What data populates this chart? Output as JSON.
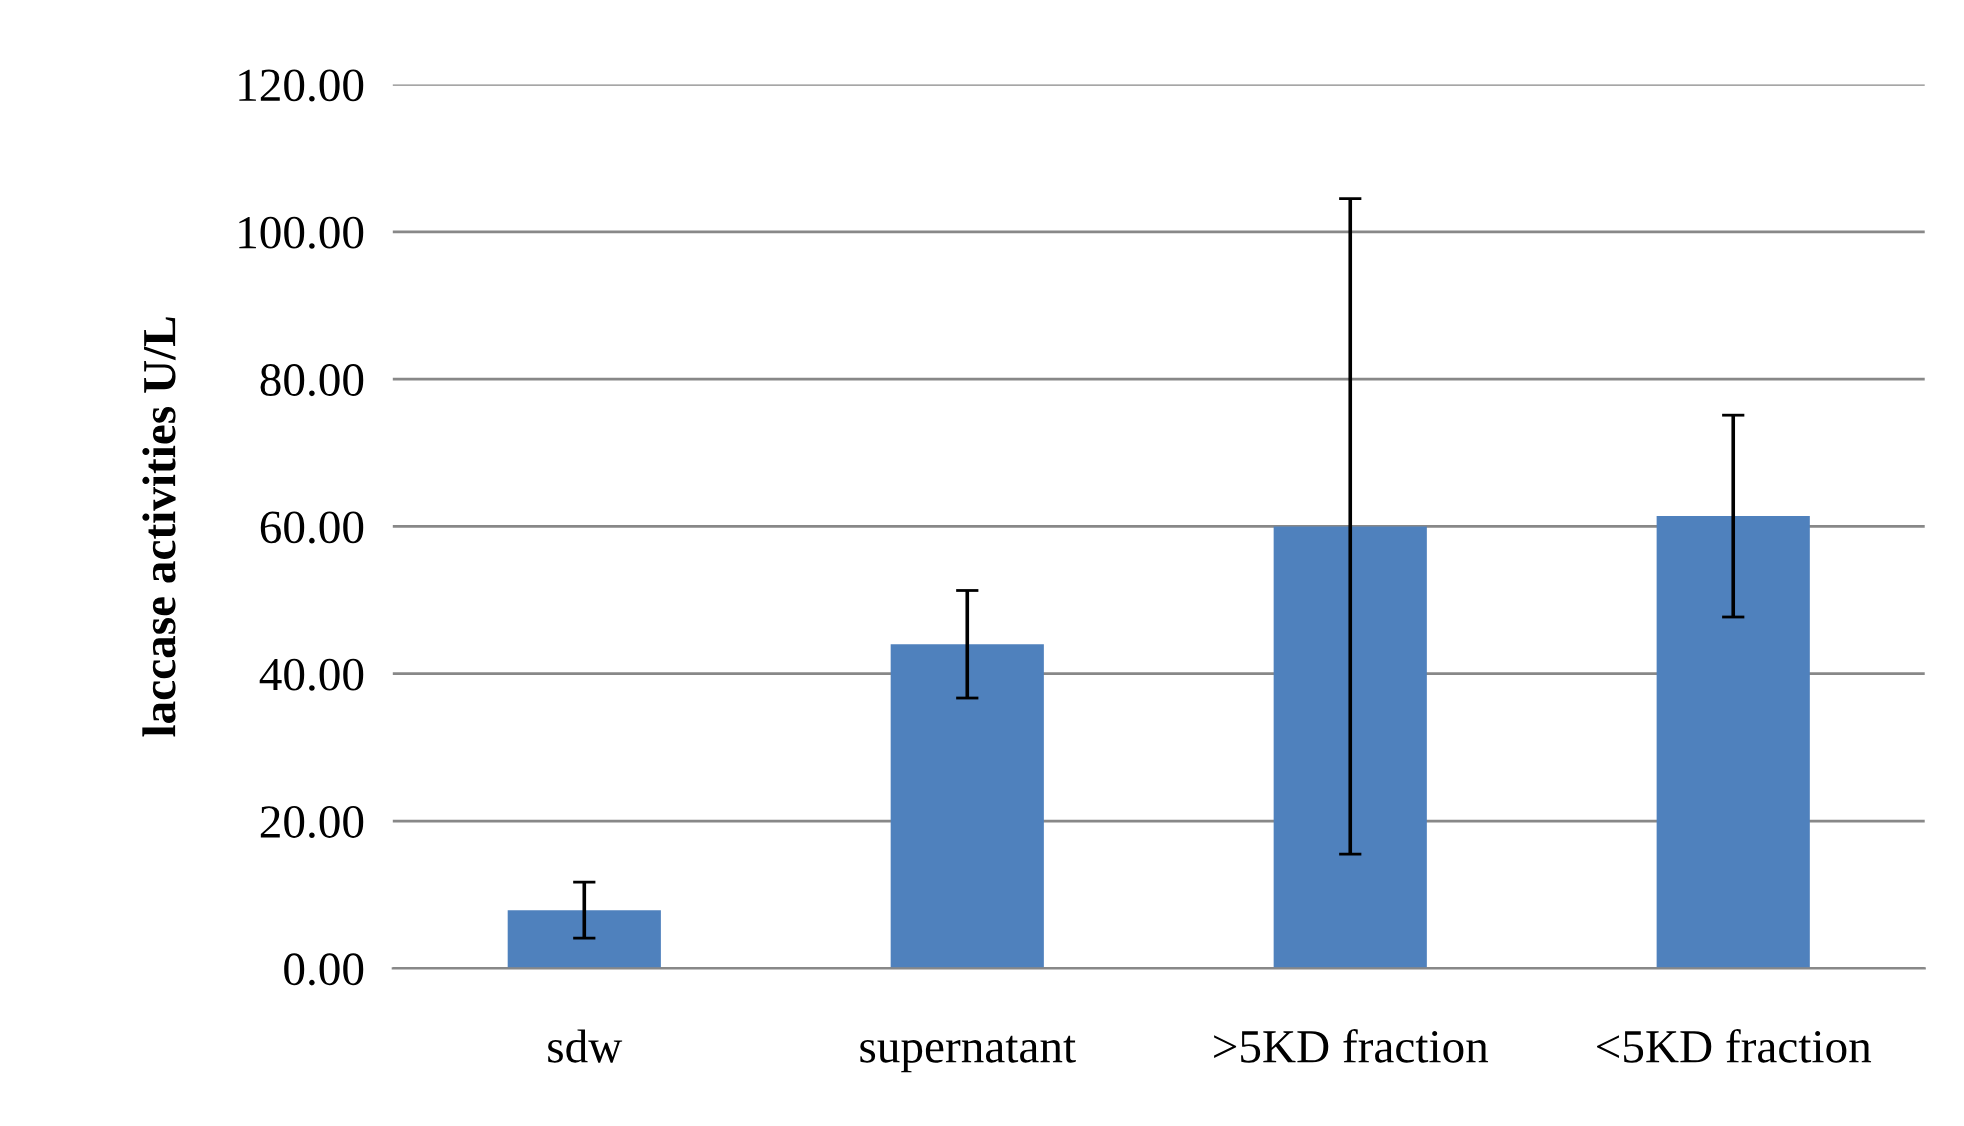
{
  "chart_data": {
    "type": "bar",
    "ylabel": "laccase activities U/L",
    "categories": [
      "sdw",
      "supernatant",
      ">5KD fraction",
      "<5KD fraction"
    ],
    "values": [
      7.9,
      44.0,
      60.0,
      61.4
    ],
    "errors": [
      3.8,
      7.3,
      44.5,
      13.7
    ],
    "color": "#4f81bd",
    "ylim": [
      0,
      120
    ],
    "yticks": [
      {
        "value": 0,
        "label": "0.00"
      },
      {
        "value": 20,
        "label": "20.00"
      },
      {
        "value": 40,
        "label": "40.00"
      },
      {
        "value": 60,
        "label": "60.00"
      },
      {
        "value": 80,
        "label": "80.00"
      },
      {
        "value": 100,
        "label": "100.00"
      },
      {
        "value": 120,
        "label": "120.00"
      }
    ],
    "grid": "y"
  }
}
